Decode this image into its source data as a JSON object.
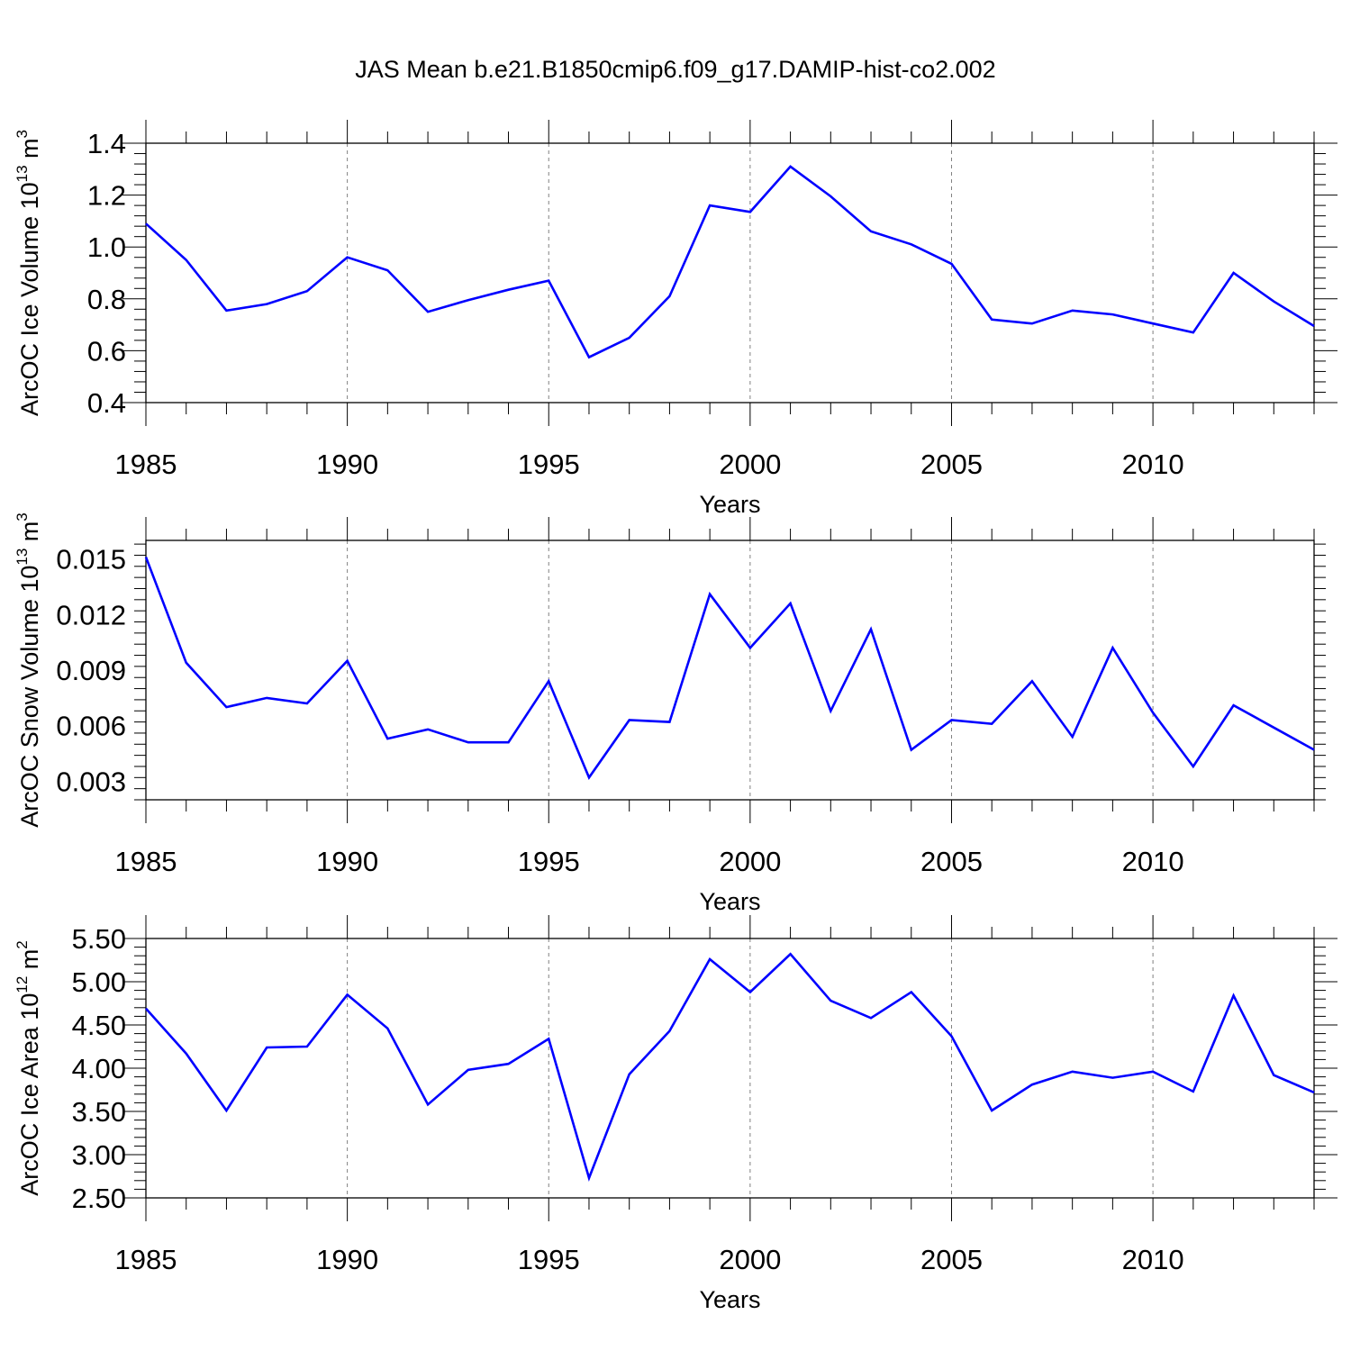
{
  "title": "JAS Mean b.e21.B1850cmip6.f09_g17.DAMIP-hist-co2.002",
  "line_color": "#0000ff",
  "chart_data": [
    {
      "type": "line",
      "ylabel": "ArcOC Ice Volume 10",
      "ylabel_sup": "13",
      "ylabel_unit": " m",
      "ylabel_unit_sup": "3",
      "xlabel": "Years",
      "xlim": [
        1985,
        2014
      ],
      "ylim": [
        0.4,
        1.4
      ],
      "x_ticks": [
        "1985",
        "1990",
        "1995",
        "2000",
        "2005",
        "2010"
      ],
      "y_ticks": [
        "0.4",
        "0.6",
        "0.8",
        "1.0",
        "1.2",
        "1.4"
      ],
      "x": [
        1985,
        1986,
        1987,
        1988,
        1989,
        1990,
        1991,
        1992,
        1993,
        1994,
        1995,
        1996,
        1997,
        1998,
        1999,
        2000,
        2001,
        2002,
        2003,
        2004,
        2005,
        2006,
        2007,
        2008,
        2009,
        2010,
        2011,
        2012,
        2013,
        2014
      ],
      "series": [
        {
          "values": [
            1.09,
            0.95,
            0.755,
            0.78,
            0.83,
            0.96,
            0.91,
            0.75,
            0.795,
            0.835,
            0.87,
            0.575,
            0.65,
            0.81,
            1.16,
            1.135,
            1.31,
            1.195,
            1.06,
            1.01,
            0.935,
            0.72,
            0.705,
            0.755,
            0.74,
            0.705,
            0.67,
            0.9,
            0.79,
            0.695
          ]
        }
      ]
    },
    {
      "type": "line",
      "ylabel": "ArcOC Snow Volume 10",
      "ylabel_sup": "13",
      "ylabel_unit": " m",
      "ylabel_unit_sup": "3",
      "xlabel": "Years",
      "xlim": [
        1985,
        2014
      ],
      "ylim": [
        0.002,
        0.016
      ],
      "x_ticks": [
        "1985",
        "1990",
        "1995",
        "2000",
        "2005",
        "2010"
      ],
      "y_ticks": [
        "0.003",
        "0.006",
        "0.009",
        "0.012",
        "0.015"
      ],
      "x": [
        1985,
        1986,
        1987,
        1988,
        1989,
        1990,
        1991,
        1992,
        1993,
        1994,
        1995,
        1996,
        1997,
        1998,
        1999,
        2000,
        2001,
        2002,
        2003,
        2004,
        2005,
        2006,
        2007,
        2008,
        2009,
        2010,
        2011,
        2012,
        2013,
        2014
      ],
      "series": [
        {
          "values": [
            0.0151,
            0.0094,
            0.007,
            0.0075,
            0.0072,
            0.0095,
            0.0053,
            0.0058,
            0.0051,
            0.0051,
            0.0084,
            0.0032,
            0.0063,
            0.0062,
            0.0131,
            0.0102,
            0.0126,
            0.0068,
            0.0112,
            0.0047,
            0.0063,
            0.0061,
            0.0084,
            0.0054,
            0.0102,
            0.0067,
            0.0038,
            0.0071,
            0.0059,
            0.0047
          ]
        }
      ]
    },
    {
      "type": "line",
      "ylabel": "ArcOC Ice Area 10",
      "ylabel_sup": "12",
      "ylabel_unit": " m",
      "ylabel_unit_sup": "2",
      "xlabel": "Years",
      "xlim": [
        1985,
        2014
      ],
      "ylim": [
        2.5,
        5.5
      ],
      "x_ticks": [
        "1985",
        "1990",
        "1995",
        "2000",
        "2005",
        "2010"
      ],
      "y_ticks": [
        "2.50",
        "3.00",
        "3.50",
        "4.00",
        "4.50",
        "5.00",
        "5.50"
      ],
      "x": [
        1985,
        1986,
        1987,
        1988,
        1989,
        1990,
        1991,
        1992,
        1993,
        1994,
        1995,
        1996,
        1997,
        1998,
        1999,
        2000,
        2001,
        2002,
        2003,
        2004,
        2005,
        2006,
        2007,
        2008,
        2009,
        2010,
        2011,
        2012,
        2013,
        2014
      ],
      "series": [
        {
          "values": [
            4.69,
            4.17,
            3.51,
            4.24,
            4.25,
            4.85,
            4.46,
            3.58,
            3.98,
            4.05,
            4.34,
            2.73,
            3.93,
            4.43,
            5.26,
            4.88,
            5.32,
            4.78,
            4.58,
            4.88,
            4.37,
            3.51,
            3.81,
            3.96,
            3.89,
            3.96,
            3.73,
            4.84,
            3.92,
            3.72
          ]
        }
      ]
    }
  ]
}
